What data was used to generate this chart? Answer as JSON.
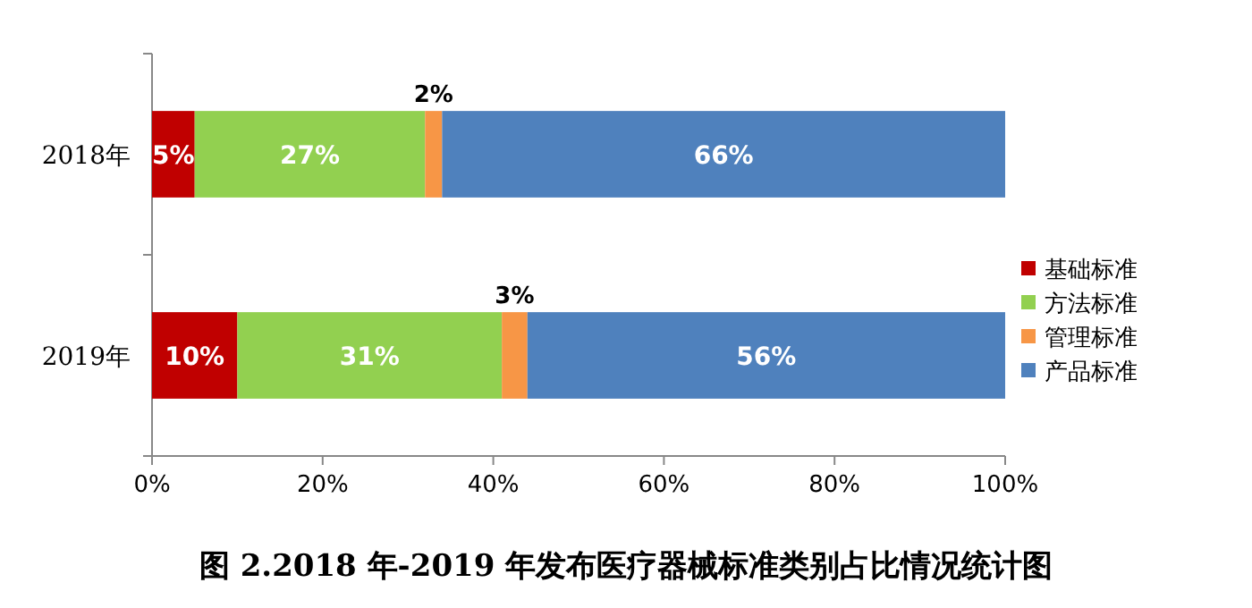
{
  "chart_data": {
    "type": "bar",
    "orientation": "horizontal",
    "stacked": true,
    "title": "图 2.2018 年-2019 年发布医疗器械标准类别占比情况统计图",
    "categories": [
      "2018年",
      "2019年"
    ],
    "series": [
      {
        "name": "基础标准",
        "color": "#c00000",
        "values": [
          5,
          10
        ],
        "value_labels": [
          "5%",
          "10%"
        ]
      },
      {
        "name": "方法标准",
        "color": "#92d050",
        "values": [
          27,
          31
        ],
        "value_labels": [
          "27%",
          "31%"
        ]
      },
      {
        "name": "管理标准",
        "color": "#f79646",
        "values": [
          2,
          3
        ],
        "value_labels": [
          "2%",
          "3%"
        ]
      },
      {
        "name": "产品标准",
        "color": "#4f81bd",
        "values": [
          66,
          56
        ],
        "value_labels": [
          "66%",
          "56%"
        ]
      }
    ],
    "xlim": [
      0,
      100
    ],
    "xticks": [
      {
        "value": 0,
        "label": "0%"
      },
      {
        "value": 20,
        "label": "20%"
      },
      {
        "value": 40,
        "label": "40%"
      },
      {
        "value": 60,
        "label": "60%"
      },
      {
        "value": 80,
        "label": "80%"
      },
      {
        "value": 100,
        "label": "100%"
      }
    ],
    "legend": "right"
  }
}
